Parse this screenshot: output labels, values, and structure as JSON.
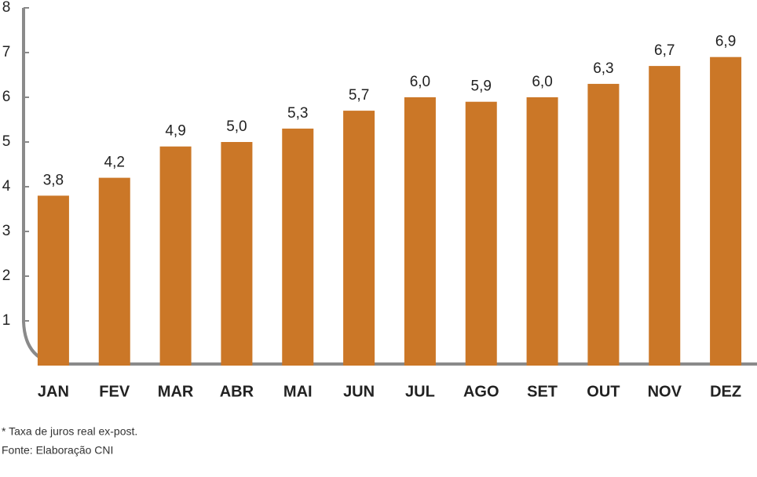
{
  "chart_data": {
    "type": "bar",
    "categories": [
      "JAN",
      "FEV",
      "MAR",
      "ABR",
      "MAI",
      "JUN",
      "JUL",
      "AGO",
      "SET",
      "OUT",
      "NOV",
      "DEZ"
    ],
    "values": [
      3.8,
      4.2,
      4.9,
      5.0,
      5.3,
      5.7,
      6.0,
      5.9,
      6.0,
      6.3,
      6.7,
      6.9
    ],
    "value_labels": [
      "3,8",
      "4,2",
      "4,9",
      "5,0",
      "5,3",
      "5,7",
      "6,0",
      "5,9",
      "6,0",
      "6,3",
      "6,7",
      "6,9"
    ],
    "color": "#cb7727",
    "ylim": [
      0,
      8
    ],
    "yticks": [
      1,
      2,
      3,
      4,
      5,
      6,
      7,
      8
    ],
    "grid": false,
    "footnote": "* Taxa de juros real ex-post.",
    "source": "Fonte: Elaboração CNI"
  }
}
